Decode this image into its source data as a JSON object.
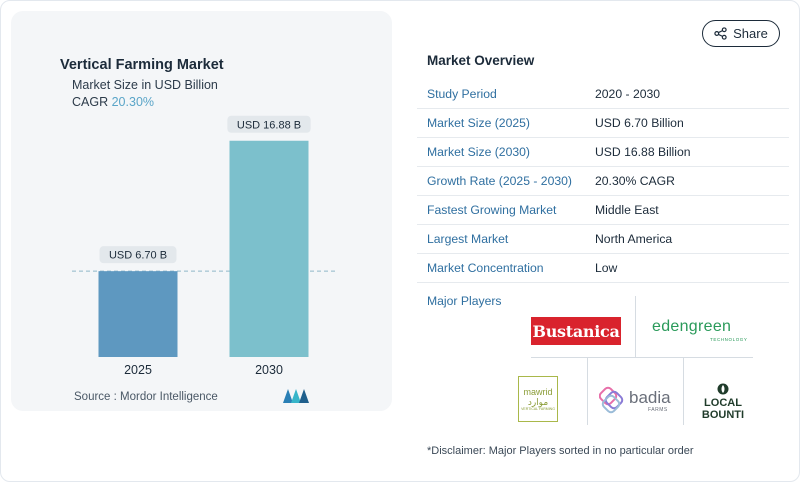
{
  "chart_card": {
    "title": "Vertical Farming Market",
    "subtitle": "Market Size in USD Billion",
    "cagr_label": "CAGR",
    "cagr_value": "20.30%",
    "source": "Source :  Mordor Intelligence"
  },
  "chart_data": {
    "type": "bar",
    "title": "Vertical Farming Market",
    "ylabel": "Market Size in USD Billion",
    "categories": [
      "2025",
      "2030"
    ],
    "values": [
      6.7,
      16.88
    ],
    "data_labels": [
      "USD 6.70 B",
      "USD 16.88 B"
    ],
    "ylim": [
      0,
      18.5
    ],
    "grid": false,
    "reference_line": 6.7,
    "bar_colors": [
      "#5e98c0",
      "#7cc0cc"
    ]
  },
  "share": {
    "label": "Share"
  },
  "overview": {
    "title": "Market Overview",
    "rows": [
      {
        "label": "Study Period",
        "value": "2020 - 2030"
      },
      {
        "label": "Market Size (2025)",
        "value": "USD 6.70 Billion"
      },
      {
        "label": "Market Size (2030)",
        "value": "USD 16.88 Billion"
      },
      {
        "label": "Growth Rate (2025 - 2030)",
        "value": "20.30% CAGR"
      },
      {
        "label": "Fastest Growing Market",
        "value": "Middle East"
      },
      {
        "label": "Largest Market",
        "value": "North America"
      },
      {
        "label": "Market Concentration",
        "value": "Low"
      }
    ]
  },
  "players": {
    "label": "Major Players",
    "logos": {
      "bustanica": "Bustanica",
      "edengreen": "edengreen",
      "edengreen_tech": "TECHNOLOGY",
      "mawrid_top": "mawrid",
      "mawrid_bottom": "موارد",
      "mawrid_caption": "VERTICAL FARMING",
      "badia": "badia",
      "badia_sub": "FARMS",
      "localbounti_1": "LOCAL",
      "localbounti_2": "BOUNTI"
    },
    "disclaimer": "*Disclaimer: Major Players sorted in no particular order"
  },
  "colors": {
    "accent": "#2f6fa0",
    "bar_2025": "#5e98c0",
    "bar_2030": "#7cc0cc",
    "cagr": "#5aa5c8"
  }
}
